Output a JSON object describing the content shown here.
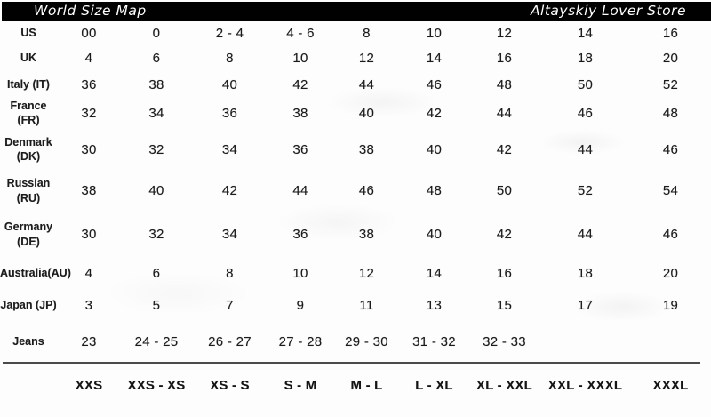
{
  "header": {
    "left_title": "World Size Map",
    "right_title": "Altayskiy Lover Store"
  },
  "colors": {
    "title_bar_bg": "#000000",
    "title_bar_text": "#ffffff",
    "body_text": "#1b1b1b",
    "divider": "#4b4b4b"
  },
  "table": {
    "rows": [
      {
        "label": "US",
        "values": [
          "00",
          "0",
          "2 - 4",
          "4 - 6",
          "8",
          "10",
          "12",
          "14",
          "16"
        ]
      },
      {
        "label": "UK",
        "values": [
          "4",
          "6",
          "8",
          "10",
          "12",
          "14",
          "16",
          "18",
          "20"
        ]
      },
      {
        "label": "Italy (IT)",
        "values": [
          "36",
          "38",
          "40",
          "42",
          "44",
          "46",
          "48",
          "50",
          "52"
        ]
      },
      {
        "label": "France (FR)",
        "values": [
          "32",
          "34",
          "36",
          "38",
          "40",
          "42",
          "44",
          "46",
          "48"
        ]
      },
      {
        "label": "Denmark\n(DK)",
        "values": [
          "30",
          "32",
          "34",
          "36",
          "38",
          "40",
          "42",
          "44",
          "46"
        ]
      },
      {
        "label": "Russian (RU)",
        "values": [
          "38",
          "40",
          "42",
          "44",
          "46",
          "48",
          "50",
          "52",
          "54"
        ]
      },
      {
        "label": "Germany\n(DE)",
        "values": [
          "30",
          "32",
          "34",
          "36",
          "38",
          "40",
          "42",
          "44",
          "46"
        ]
      },
      {
        "label": "Australia(AU)",
        "values": [
          "4",
          "6",
          "8",
          "10",
          "12",
          "14",
          "16",
          "18",
          "20"
        ]
      },
      {
        "label": "Japan (JP)",
        "values": [
          "3",
          "5",
          "7",
          "9",
          "11",
          "13",
          "15",
          "17",
          "19"
        ]
      },
      {
        "label": "Jeans",
        "values": [
          "23",
          "24 - 25",
          "26 - 27",
          "27 - 28",
          "29 - 30",
          "31 - 32",
          "32 - 33",
          "",
          ""
        ]
      }
    ]
  },
  "footer": {
    "labels": [
      "XXS",
      "XXS - XS",
      "XS - S",
      "S - M",
      "M - L",
      "L - XL",
      "XL - XXL",
      "XXL - XXXL",
      "XXXL"
    ]
  }
}
